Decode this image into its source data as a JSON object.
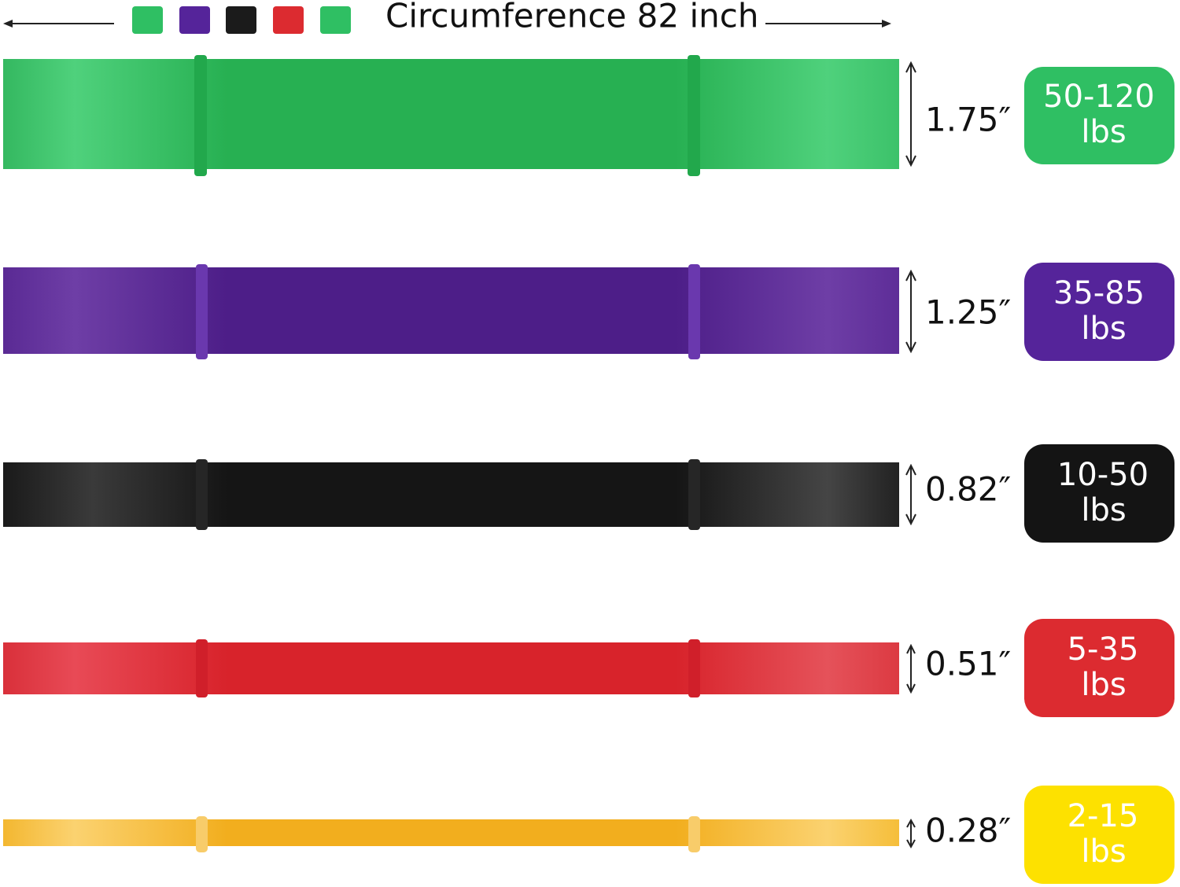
{
  "header": {
    "title": "Circumference 82 inch"
  },
  "bands": [
    {
      "width": "1.75″",
      "resistance": "50-120",
      "unit": "lbs"
    },
    {
      "width": "1.25″",
      "resistance": "35-85",
      "unit": "lbs"
    },
    {
      "width": "0.82″",
      "resistance": "10-50",
      "unit": "lbs"
    },
    {
      "width": "0.51″",
      "resistance": "5-35",
      "unit": "lbs"
    },
    {
      "width": "0.28″",
      "resistance": "2-15",
      "unit": "lbs"
    }
  ]
}
